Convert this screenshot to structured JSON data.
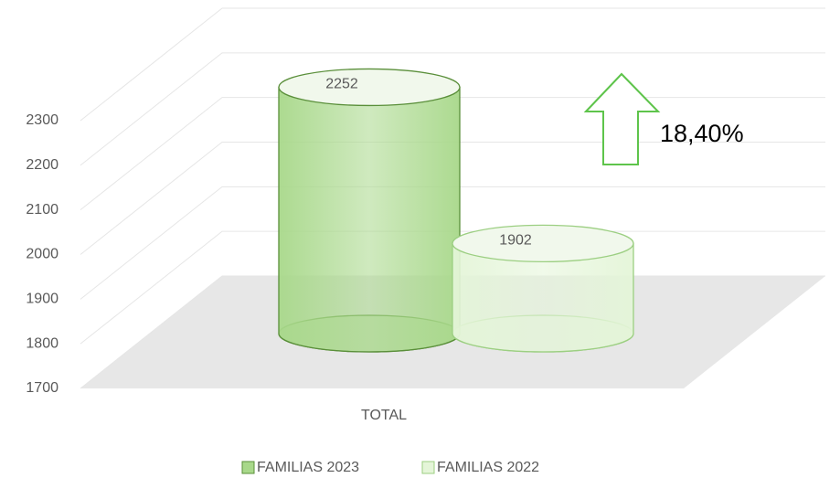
{
  "chart_data": {
    "type": "bar3d",
    "categories": [
      "TOTAL"
    ],
    "series": [
      {
        "name": "FAMILIAS 2023",
        "color": "#a8d88a",
        "edge": "#5a8f3a",
        "values": [
          2252
        ]
      },
      {
        "name": "FAMILIAS 2022",
        "color": "#e4f5d8",
        "edge": "#9ccf82",
        "values": [
          1902
        ]
      }
    ],
    "ylim": [
      1700,
      2300
    ],
    "yticks": [
      1700,
      1800,
      1900,
      2000,
      2100,
      2200,
      2300
    ],
    "grid": true,
    "annotation": "18,40%",
    "legend": "bottom"
  }
}
